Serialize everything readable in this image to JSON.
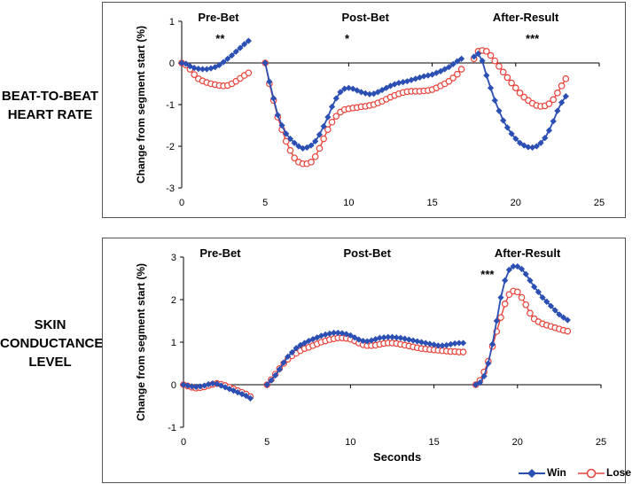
{
  "chart_data": [
    {
      "type": "line",
      "row_label": [
        "BEAT-TO-BEAT",
        "HEART RATE"
      ],
      "ylabel": "Change from segment start (%)",
      "xlabel": "",
      "xlim": [
        0,
        25
      ],
      "ylim": [
        -3,
        1
      ],
      "xticks": [
        "0",
        "5",
        "10",
        "15",
        "20",
        "25"
      ],
      "yticks": [
        "-3",
        "-2",
        "-1",
        "0",
        "1"
      ],
      "segments": [
        {
          "label": "Pre-Bet",
          "label_x": 2.2,
          "sig": "**",
          "sig_x": 2.3,
          "x": [
            0,
            0.25,
            0.5,
            0.75,
            1,
            1.25,
            1.5,
            1.75,
            2,
            2.25,
            2.5,
            2.75,
            3,
            3.25,
            3.5,
            3.75,
            4
          ]
        },
        {
          "label": "Post-Bet",
          "label_x": 11.0,
          "sig": "*",
          "sig_x": 9.9,
          "x": [
            5,
            5.25,
            5.5,
            5.75,
            6,
            6.25,
            6.5,
            6.75,
            7,
            7.25,
            7.5,
            7.75,
            8,
            8.25,
            8.5,
            8.75,
            9,
            9.25,
            9.5,
            9.75,
            10,
            10.25,
            10.5,
            10.75,
            11,
            11.25,
            11.5,
            11.75,
            12,
            12.25,
            12.5,
            12.75,
            13,
            13.25,
            13.5,
            13.75,
            14,
            14.25,
            14.5,
            14.75,
            15,
            15.25,
            15.5,
            15.75,
            16,
            16.25,
            16.5,
            16.75
          ]
        },
        {
          "label": "After-Result",
          "label_x": 20.6,
          "sig": "***",
          "sig_x": 21.0,
          "x": [
            17.5,
            17.75,
            18,
            18.25,
            18.5,
            18.75,
            19,
            19.25,
            19.5,
            19.75,
            20,
            20.25,
            20.5,
            20.75,
            21,
            21.25,
            21.5,
            21.75,
            22,
            22.25,
            22.5,
            22.75,
            23
          ]
        }
      ],
      "series": [
        {
          "name": "Win",
          "color": "#2b4fb3",
          "marker": "diamond",
          "values": [
            [
              0,
              -0.02,
              -0.08,
              -0.12,
              -0.14,
              -0.15,
              -0.15,
              -0.13,
              -0.1,
              -0.05,
              0.02,
              0.1,
              0.18,
              0.27,
              0.36,
              0.45,
              0.53
            ],
            [
              0,
              -0.45,
              -0.85,
              -1.25,
              -1.5,
              -1.7,
              -1.82,
              -1.92,
              -2.0,
              -2.05,
              -2.03,
              -1.98,
              -1.88,
              -1.72,
              -1.52,
              -1.3,
              -1.05,
              -0.85,
              -0.7,
              -0.62,
              -0.6,
              -0.62,
              -0.66,
              -0.7,
              -0.73,
              -0.75,
              -0.74,
              -0.7,
              -0.65,
              -0.6,
              -0.55,
              -0.51,
              -0.48,
              -0.46,
              -0.44,
              -0.41,
              -0.38,
              -0.35,
              -0.32,
              -0.3,
              -0.28,
              -0.24,
              -0.2,
              -0.15,
              -0.1,
              -0.03,
              0.04,
              0.1
            ],
            [
              0.15,
              0.22,
              0.05,
              -0.3,
              -0.6,
              -0.9,
              -1.15,
              -1.38,
              -1.55,
              -1.7,
              -1.82,
              -1.92,
              -1.98,
              -2.02,
              -2.03,
              -2.0,
              -1.92,
              -1.8,
              -1.62,
              -1.4,
              -1.15,
              -0.95,
              -0.8
            ]
          ]
        },
        {
          "name": "Lose",
          "color": "#e8423a",
          "marker": "circle-open",
          "values": [
            [
              0,
              -0.05,
              -0.15,
              -0.28,
              -0.38,
              -0.43,
              -0.47,
              -0.5,
              -0.52,
              -0.54,
              -0.55,
              -0.54,
              -0.5,
              -0.44,
              -0.37,
              -0.3,
              -0.24
            ],
            [
              0,
              -0.5,
              -0.9,
              -1.3,
              -1.6,
              -1.88,
              -2.1,
              -2.28,
              -2.38,
              -2.42,
              -2.42,
              -2.38,
              -2.25,
              -2.05,
              -1.82,
              -1.6,
              -1.42,
              -1.28,
              -1.18,
              -1.12,
              -1.1,
              -1.08,
              -1.07,
              -1.05,
              -1.04,
              -1.02,
              -1.0,
              -0.96,
              -0.92,
              -0.87,
              -0.82,
              -0.78,
              -0.74,
              -0.71,
              -0.69,
              -0.68,
              -0.68,
              -0.68,
              -0.67,
              -0.66,
              -0.64,
              -0.6,
              -0.55,
              -0.5,
              -0.44,
              -0.36,
              -0.27,
              -0.15
            ],
            [
              0.1,
              0.28,
              0.3,
              0.28,
              0.18,
              0.05,
              -0.08,
              -0.22,
              -0.35,
              -0.48,
              -0.6,
              -0.72,
              -0.82,
              -0.9,
              -0.97,
              -1.02,
              -1.04,
              -1.03,
              -0.98,
              -0.88,
              -0.72,
              -0.55,
              -0.38
            ]
          ]
        }
      ]
    },
    {
      "type": "line",
      "row_label": [
        "SKIN",
        "CONDUCTANCE",
        "LEVEL"
      ],
      "ylabel": "Change from segment start (%)",
      "xlabel": "Seconds",
      "xlim": [
        0,
        25
      ],
      "ylim": [
        -1,
        3
      ],
      "xticks": [
        "0",
        "5",
        "10",
        "15",
        "20",
        "25"
      ],
      "yticks": [
        "-1",
        "0",
        "1",
        "2",
        "3"
      ],
      "segments": [
        {
          "label": "Pre-Bet",
          "label_x": 2.2,
          "sig": "",
          "sig_x": 0,
          "x": [
            0,
            0.25,
            0.5,
            0.75,
            1,
            1.25,
            1.5,
            1.75,
            2,
            2.25,
            2.5,
            2.75,
            3,
            3.25,
            3.5,
            3.75,
            4
          ]
        },
        {
          "label": "Post-Bet",
          "label_x": 11.0,
          "sig": "",
          "sig_x": 0,
          "x": [
            5,
            5.25,
            5.5,
            5.75,
            6,
            6.25,
            6.5,
            6.75,
            7,
            7.25,
            7.5,
            7.75,
            8,
            8.25,
            8.5,
            8.75,
            9,
            9.25,
            9.5,
            9.75,
            10,
            10.25,
            10.5,
            10.75,
            11,
            11.25,
            11.5,
            11.75,
            12,
            12.25,
            12.5,
            12.75,
            13,
            13.25,
            13.5,
            13.75,
            14,
            14.25,
            14.5,
            14.75,
            15,
            15.25,
            15.5,
            15.75,
            16,
            16.25,
            16.5,
            16.75
          ]
        },
        {
          "label": "After-Result",
          "label_x": 20.6,
          "sig": "***",
          "sig_x": 18.2,
          "x": [
            17.5,
            17.75,
            18,
            18.25,
            18.5,
            18.75,
            19,
            19.25,
            19.5,
            19.75,
            20,
            20.25,
            20.5,
            20.75,
            21,
            21.25,
            21.5,
            21.75,
            22,
            22.25,
            22.5,
            22.75,
            23
          ]
        }
      ],
      "series": [
        {
          "name": "Win",
          "color": "#2b4fb3",
          "marker": "diamond",
          "values": [
            [
              0,
              -0.02,
              -0.04,
              -0.05,
              -0.04,
              -0.02,
              0.01,
              0.03,
              0.02,
              -0.02,
              -0.06,
              -0.1,
              -0.14,
              -0.18,
              -0.22,
              -0.26,
              -0.32
            ],
            [
              0,
              0.1,
              0.22,
              0.36,
              0.52,
              0.66,
              0.76,
              0.86,
              0.93,
              0.98,
              1.03,
              1.07,
              1.11,
              1.15,
              1.18,
              1.2,
              1.22,
              1.22,
              1.21,
              1.19,
              1.16,
              1.11,
              1.06,
              1.03,
              1.02,
              1.04,
              1.07,
              1.1,
              1.11,
              1.12,
              1.12,
              1.11,
              1.1,
              1.08,
              1.06,
              1.04,
              1.02,
              1.0,
              0.98,
              0.96,
              0.94,
              0.92,
              0.92,
              0.93,
              0.95,
              0.97,
              0.98,
              0.98
            ],
            [
              0,
              0.05,
              0.2,
              0.5,
              0.95,
              1.5,
              2.05,
              2.45,
              2.7,
              2.78,
              2.78,
              2.72,
              2.6,
              2.45,
              2.3,
              2.18,
              2.05,
              1.95,
              1.85,
              1.75,
              1.65,
              1.58,
              1.52
            ]
          ]
        },
        {
          "name": "Lose",
          "color": "#e8423a",
          "marker": "circle-open",
          "values": [
            [
              0,
              -0.03,
              -0.06,
              -0.08,
              -0.07,
              -0.05,
              -0.02,
              0.01,
              0.03,
              0.01,
              -0.02,
              -0.06,
              -0.1,
              -0.14,
              -0.18,
              -0.22,
              -0.28
            ],
            [
              0,
              0.12,
              0.25,
              0.38,
              0.5,
              0.6,
              0.68,
              0.74,
              0.8,
              0.85,
              0.88,
              0.92,
              0.96,
              1.0,
              1.03,
              1.06,
              1.08,
              1.1,
              1.1,
              1.09,
              1.07,
              1.03,
              0.98,
              0.94,
              0.92,
              0.92,
              0.93,
              0.95,
              0.97,
              0.98,
              0.98,
              0.97,
              0.95,
              0.93,
              0.91,
              0.89,
              0.87,
              0.85,
              0.84,
              0.83,
              0.82,
              0.81,
              0.8,
              0.79,
              0.78,
              0.78,
              0.77,
              0.77
            ],
            [
              0,
              0.1,
              0.3,
              0.55,
              0.9,
              1.25,
              1.58,
              1.9,
              2.12,
              2.2,
              2.18,
              2.05,
              1.88,
              1.68,
              1.55,
              1.48,
              1.43,
              1.4,
              1.37,
              1.34,
              1.31,
              1.28,
              1.26
            ]
          ]
        }
      ]
    }
  ],
  "legend": {
    "win_label": "Win",
    "lose_label": "Lose"
  }
}
